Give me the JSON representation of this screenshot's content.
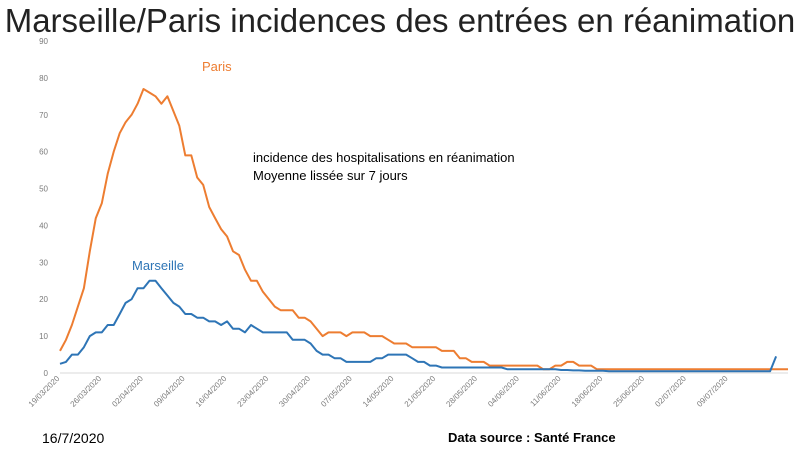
{
  "chart_data": {
    "type": "line",
    "title": "Marseille/Paris incidences des entrées en réanimation",
    "annotation_lines": [
      "incidence des hospitalisations en réanimation",
      "Moyenne lissée sur 7 jours"
    ],
    "ylim": [
      0,
      90
    ],
    "y_ticks": [
      0,
      10,
      20,
      30,
      40,
      50,
      60,
      70,
      80,
      90
    ],
    "x_tick_labels": [
      "19/03/2020",
      "26/03/2020",
      "02/04/2020",
      "09/04/2020",
      "16/04/2020",
      "23/04/2020",
      "30/04/2020",
      "07/05/2020",
      "14/05/2020",
      "21/05/2020",
      "28/05/2020",
      "04/06/2020",
      "11/06/2020",
      "18/06/2020",
      "25/06/2020",
      "02/07/2020",
      "09/07/2020"
    ],
    "grid": false,
    "series": [
      {
        "name": "Paris",
        "color": "#ED7D31",
        "values": [
          6,
          9,
          13,
          18,
          23,
          33,
          42,
          46,
          54,
          60,
          65,
          68,
          70,
          73,
          77,
          76,
          75,
          73,
          75,
          71,
          67,
          59,
          59,
          53,
          51,
          45,
          42,
          39,
          37,
          33,
          32,
          28,
          25,
          25,
          22,
          20,
          18,
          17,
          17,
          17,
          15,
          15,
          14,
          12,
          10,
          11,
          11,
          11,
          10,
          11,
          11,
          11,
          10,
          10,
          10,
          9,
          8,
          8,
          8,
          7,
          7,
          7,
          7,
          7,
          6,
          6,
          6,
          4,
          4,
          3,
          3,
          3,
          2,
          2,
          2,
          2,
          2,
          2,
          2,
          2,
          2,
          1,
          1,
          2,
          2,
          3,
          3,
          2,
          2,
          2,
          1,
          1,
          1,
          1,
          1,
          1,
          1,
          1,
          1,
          1,
          1,
          1,
          1,
          1,
          1,
          1,
          1,
          1,
          1,
          1,
          1,
          1,
          1,
          1,
          1,
          1,
          1,
          1,
          1,
          1,
          1,
          1,
          1
        ]
      },
      {
        "name": "Marseille",
        "color": "#2E75B6",
        "values": [
          2.5,
          3,
          5,
          5,
          7,
          10,
          11,
          11,
          13,
          13,
          16,
          19,
          20,
          23,
          23,
          25,
          25,
          23,
          21,
          19,
          18,
          16,
          16,
          15,
          15,
          14,
          14,
          13,
          14,
          12,
          12,
          11,
          13,
          12,
          11,
          11,
          11,
          11,
          11,
          9,
          9,
          9,
          8,
          6,
          5,
          5,
          4,
          4,
          3,
          3,
          3,
          3,
          3,
          4,
          4,
          5,
          5,
          5,
          5,
          4,
          3,
          3,
          2,
          2,
          1.5,
          1.5,
          1.5,
          1.5,
          1.5,
          1.5,
          1.5,
          1.5,
          1.5,
          1.5,
          1.5,
          1,
          1,
          1,
          1,
          1,
          1,
          1,
          1,
          1,
          0.8,
          0.8,
          0.7,
          0.7,
          0.6,
          0.6,
          0.6,
          0.6,
          0.5,
          0.5,
          0.5,
          0.5,
          0.5,
          0.5,
          0.5,
          0.5,
          0.5,
          0.5,
          0.5,
          0.5,
          0.5,
          0.5,
          0.5,
          0.5,
          0.5,
          0.5,
          0.5,
          0.5,
          0.5,
          0.5,
          0.5,
          0.5,
          0.5,
          0.5,
          0.5,
          0.5,
          4.5
        ]
      }
    ]
  },
  "footer": {
    "date": "16/7/2020",
    "source": "Data source : Santé France"
  }
}
